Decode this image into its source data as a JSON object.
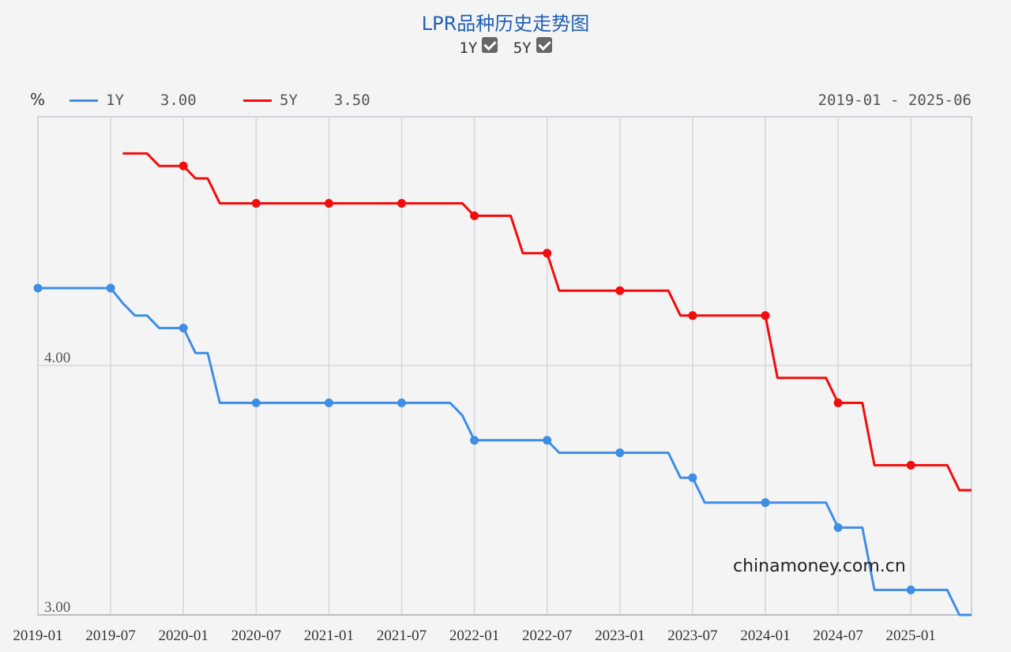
{
  "header": {
    "title": "LPR品种历史走势图",
    "toggles": [
      {
        "label": "1Y",
        "checked": true
      },
      {
        "label": "5Y",
        "checked": true
      }
    ]
  },
  "legend": {
    "unit": "%",
    "items": [
      {
        "name": "1Y",
        "value": "3.00",
        "color": "#3f8ee6"
      },
      {
        "name": "5Y",
        "value": "3.50",
        "color": "#f20c0c"
      }
    ],
    "date_range": "2019-01 - 2025-06"
  },
  "watermark": "chinamoney.com.cn",
  "chart_data": {
    "type": "line",
    "x_range": [
      "2019-01",
      "2025-06"
    ],
    "ylim": [
      3.0,
      5.0
    ],
    "y_ticks": [
      {
        "value": 3.0,
        "label": "3.00"
      },
      {
        "value": 4.0,
        "label": "4.00"
      }
    ],
    "x_ticks": [
      "2019-01",
      "2019-07",
      "2020-01",
      "2020-07",
      "2021-01",
      "2021-07",
      "2022-01",
      "2022-07",
      "2023-01",
      "2023-07",
      "2024-01",
      "2024-07",
      "2025-01"
    ],
    "grid": true,
    "series": [
      {
        "name": "1Y",
        "color": "#3f8ee6",
        "points": [
          [
            "2019-01",
            4.31
          ],
          [
            "2019-07",
            4.31
          ],
          [
            "2019-08",
            4.25
          ],
          [
            "2019-09",
            4.2
          ],
          [
            "2019-10",
            4.2
          ],
          [
            "2019-11",
            4.15
          ],
          [
            "2019-12",
            4.15
          ],
          [
            "2020-01",
            4.15
          ],
          [
            "2020-02",
            4.05
          ],
          [
            "2020-03",
            4.05
          ],
          [
            "2020-04",
            3.85
          ],
          [
            "2020-07",
            3.85
          ],
          [
            "2021-01",
            3.85
          ],
          [
            "2021-07",
            3.85
          ],
          [
            "2021-11",
            3.85
          ],
          [
            "2021-12",
            3.8
          ],
          [
            "2022-01",
            3.7
          ],
          [
            "2022-07",
            3.7
          ],
          [
            "2022-08",
            3.65
          ],
          [
            "2023-01",
            3.65
          ],
          [
            "2023-05",
            3.65
          ],
          [
            "2023-06",
            3.55
          ],
          [
            "2023-07",
            3.55
          ],
          [
            "2023-08",
            3.45
          ],
          [
            "2024-01",
            3.45
          ],
          [
            "2024-06",
            3.45
          ],
          [
            "2024-07",
            3.35
          ],
          [
            "2024-09",
            3.35
          ],
          [
            "2024-10",
            3.1
          ],
          [
            "2025-01",
            3.1
          ],
          [
            "2025-04",
            3.1
          ],
          [
            "2025-05",
            3.0
          ],
          [
            "2025-06",
            3.0
          ]
        ],
        "markers": [
          "2019-01",
          "2019-07",
          "2020-01",
          "2020-07",
          "2021-01",
          "2021-07",
          "2022-01",
          "2022-07",
          "2023-01",
          "2023-07",
          "2024-01",
          "2024-07",
          "2025-01"
        ]
      },
      {
        "name": "5Y",
        "color": "#f20c0c",
        "points": [
          [
            "2019-08",
            4.85
          ],
          [
            "2019-10",
            4.85
          ],
          [
            "2019-11",
            4.8
          ],
          [
            "2020-01",
            4.8
          ],
          [
            "2020-02",
            4.75
          ],
          [
            "2020-03",
            4.75
          ],
          [
            "2020-04",
            4.65
          ],
          [
            "2020-07",
            4.65
          ],
          [
            "2021-01",
            4.65
          ],
          [
            "2021-07",
            4.65
          ],
          [
            "2021-12",
            4.65
          ],
          [
            "2022-01",
            4.6
          ],
          [
            "2022-04",
            4.6
          ],
          [
            "2022-05",
            4.45
          ],
          [
            "2022-07",
            4.45
          ],
          [
            "2022-08",
            4.3
          ],
          [
            "2023-01",
            4.3
          ],
          [
            "2023-05",
            4.3
          ],
          [
            "2023-06",
            4.2
          ],
          [
            "2023-07",
            4.2
          ],
          [
            "2024-01",
            4.2
          ],
          [
            "2024-02",
            3.95
          ],
          [
            "2024-06",
            3.95
          ],
          [
            "2024-07",
            3.85
          ],
          [
            "2024-09",
            3.85
          ],
          [
            "2024-10",
            3.6
          ],
          [
            "2025-01",
            3.6
          ],
          [
            "2025-04",
            3.6
          ],
          [
            "2025-05",
            3.5
          ],
          [
            "2025-06",
            3.5
          ]
        ],
        "markers": [
          "2020-01",
          "2020-07",
          "2021-01",
          "2021-07",
          "2022-01",
          "2022-07",
          "2023-01",
          "2023-07",
          "2024-01",
          "2024-07",
          "2025-01"
        ]
      }
    ]
  }
}
